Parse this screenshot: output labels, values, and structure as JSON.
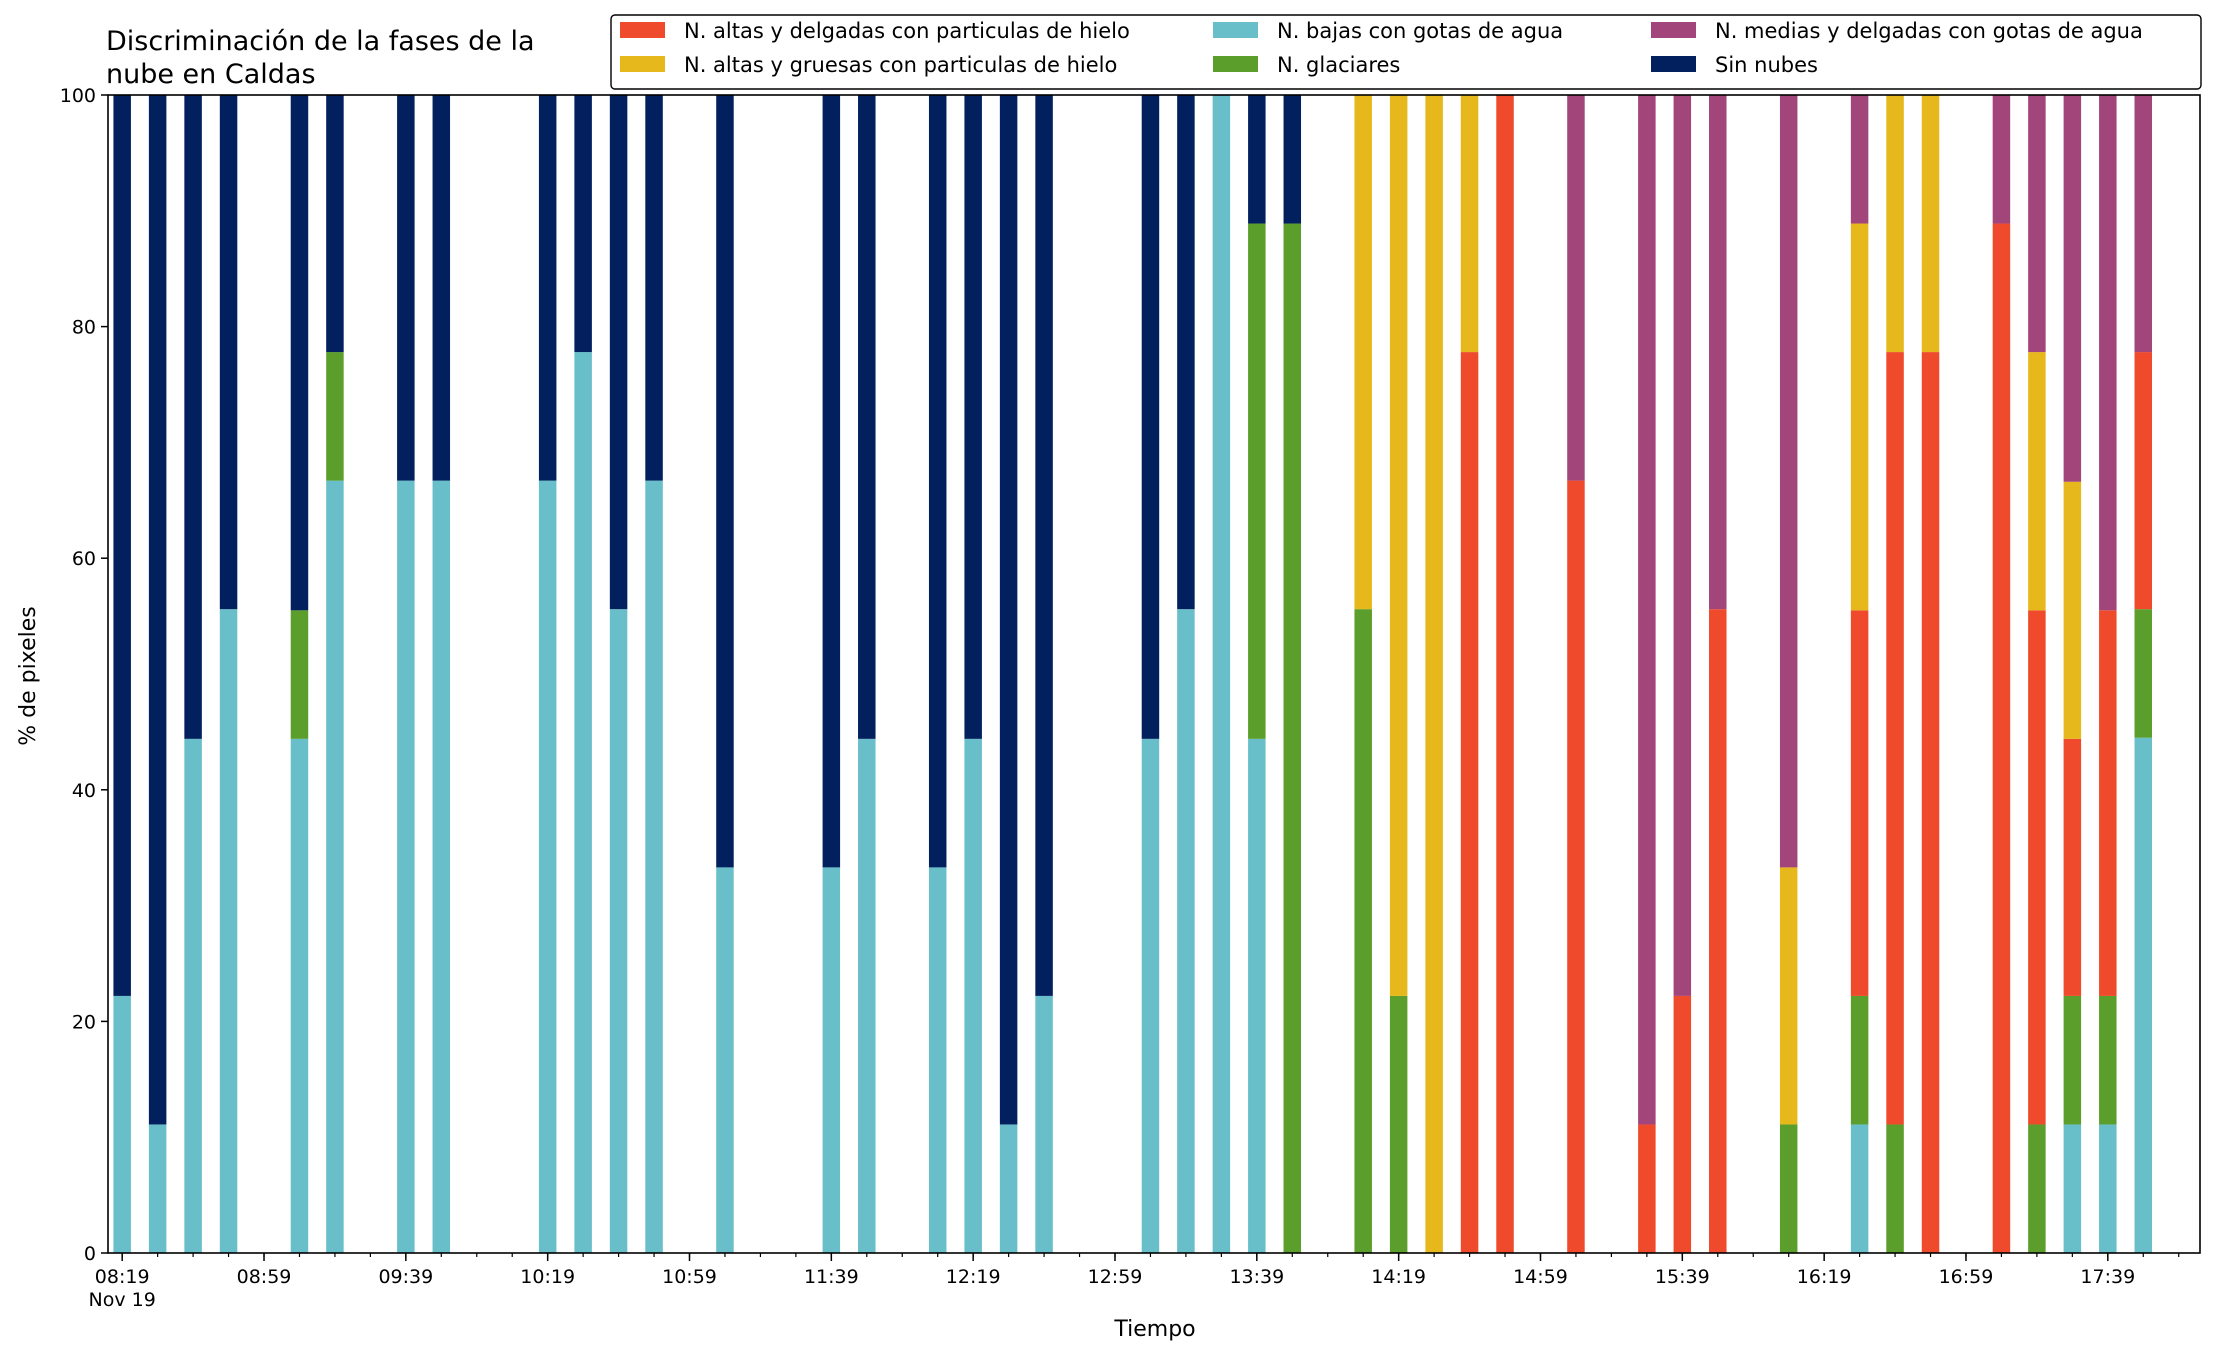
{
  "chart_data": {
    "type": "bar",
    "stacked": true,
    "title": "Discriminación de la fases de la\nnube en Caldas",
    "xlabel": "Tiempo",
    "ylabel": "% de pixeles",
    "ylim": [
      0,
      100
    ],
    "yticks": [
      0,
      20,
      40,
      60,
      80,
      100
    ],
    "x_tick_labels": [
      "08:19\nNov 19",
      "08:59",
      "09:39",
      "10:19",
      "10:59",
      "11:39",
      "12:19",
      "12:59",
      "13:39",
      "14:19",
      "14:59",
      "15:39",
      "16:19",
      "16:59",
      "17:39"
    ],
    "x_tick_times": [
      "08:19",
      "08:59",
      "09:39",
      "10:19",
      "10:59",
      "11:39",
      "12:19",
      "12:59",
      "13:39",
      "14:19",
      "14:59",
      "15:39",
      "16:19",
      "16:59",
      "17:39"
    ],
    "x_minor_step_minutes": 10,
    "x_range": [
      "08:15",
      "18:05"
    ],
    "grid": false,
    "legend_position": "top",
    "series_order": [
      "bajas",
      "glaciares",
      "altas_delgadas",
      "altas_gruesas",
      "medias",
      "sin_nubes"
    ],
    "series": [
      {
        "key": "altas_delgadas",
        "name": "N. altas y delgadas con particulas de hielo",
        "color": "#EE4A2B"
      },
      {
        "key": "altas_gruesas",
        "name": "N. altas y gruesas con particulas de hielo",
        "color": "#E6B81C"
      },
      {
        "key": "bajas",
        "name": "N. bajas con gotas de agua",
        "color": "#68BFC9"
      },
      {
        "key": "glaciares",
        "name": "N. glaciares",
        "color": "#5B9E2B"
      },
      {
        "key": "medias",
        "name": "N. medias y delgadas con gotas de agua",
        "color": "#A2457B"
      },
      {
        "key": "sin_nubes",
        "name": "Sin nubes",
        "color": "#03205E"
      }
    ],
    "bars": [
      {
        "time": "08:19",
        "bajas": 22.2,
        "sin_nubes": 77.8
      },
      {
        "time": "08:29",
        "bajas": 11.1,
        "sin_nubes": 88.9
      },
      {
        "time": "08:39",
        "bajas": 44.4,
        "sin_nubes": 55.6
      },
      {
        "time": "08:49",
        "bajas": 55.6,
        "sin_nubes": 44.4
      },
      {
        "time": "09:09",
        "bajas": 44.4,
        "glaciares": 11.1,
        "sin_nubes": 44.5
      },
      {
        "time": "09:19",
        "bajas": 66.7,
        "glaciares": 11.1,
        "sin_nubes": 22.2
      },
      {
        "time": "09:39",
        "bajas": 66.7,
        "sin_nubes": 33.3
      },
      {
        "time": "09:49",
        "bajas": 66.7,
        "sin_nubes": 33.3
      },
      {
        "time": "10:19",
        "bajas": 66.7,
        "sin_nubes": 33.3
      },
      {
        "time": "10:29",
        "bajas": 77.8,
        "sin_nubes": 22.2
      },
      {
        "time": "10:39",
        "bajas": 55.6,
        "sin_nubes": 44.4
      },
      {
        "time": "10:49",
        "bajas": 66.7,
        "sin_nubes": 33.3
      },
      {
        "time": "11:09",
        "bajas": 33.3,
        "sin_nubes": 66.7
      },
      {
        "time": "11:39",
        "bajas": 33.3,
        "sin_nubes": 66.7
      },
      {
        "time": "11:49",
        "bajas": 44.4,
        "sin_nubes": 55.6
      },
      {
        "time": "12:09",
        "bajas": 33.3,
        "sin_nubes": 66.7
      },
      {
        "time": "12:19",
        "bajas": 44.4,
        "sin_nubes": 55.6
      },
      {
        "time": "12:29",
        "bajas": 11.1,
        "sin_nubes": 88.9
      },
      {
        "time": "12:39",
        "bajas": 22.2,
        "sin_nubes": 77.8
      },
      {
        "time": "13:09",
        "bajas": 44.4,
        "sin_nubes": 55.6
      },
      {
        "time": "13:19",
        "bajas": 55.6,
        "sin_nubes": 44.4
      },
      {
        "time": "13:29",
        "bajas": 100
      },
      {
        "time": "13:39",
        "bajas": 44.4,
        "glaciares": 44.5,
        "sin_nubes": 11.1
      },
      {
        "time": "13:49",
        "glaciares": 88.9,
        "sin_nubes": 11.1
      },
      {
        "time": "14:09",
        "altas_gruesas": 44.4,
        "glaciares": 55.6
      },
      {
        "time": "14:19",
        "altas_gruesas": 77.8,
        "glaciares": 22.2
      },
      {
        "time": "14:29",
        "altas_gruesas": 100
      },
      {
        "time": "14:39",
        "altas_delgadas": 77.8,
        "altas_gruesas": 22.2
      },
      {
        "time": "14:49",
        "altas_delgadas": 100
      },
      {
        "time": "15:09",
        "altas_delgadas": 66.7,
        "medias": 33.3
      },
      {
        "time": "15:29",
        "altas_delgadas": 11.1,
        "medias": 88.9
      },
      {
        "time": "15:39",
        "altas_delgadas": 22.2,
        "medias": 77.8
      },
      {
        "time": "15:49",
        "altas_delgadas": 55.6,
        "medias": 44.4
      },
      {
        "time": "16:09",
        "glaciares": 11.1,
        "altas_gruesas": 22.2,
        "medias": 66.7
      },
      {
        "time": "16:29",
        "bajas": 11.1,
        "glaciares": 11.1,
        "altas_delgadas": 33.3,
        "altas_gruesas": 33.4,
        "medias": 11.1
      },
      {
        "time": "16:39",
        "glaciares": 11.1,
        "altas_delgadas": 66.7,
        "altas_gruesas": 22.2
      },
      {
        "time": "16:49",
        "altas_delgadas": 77.8,
        "altas_gruesas": 22.2
      },
      {
        "time": "17:09",
        "altas_delgadas": 88.9,
        "medias": 11.1
      },
      {
        "time": "17:19",
        "glaciares": 11.1,
        "altas_delgadas": 44.4,
        "altas_gruesas": 22.3,
        "medias": 22.2
      },
      {
        "time": "17:29",
        "bajas": 11.1,
        "glaciares": 11.1,
        "altas_delgadas": 22.2,
        "altas_gruesas": 22.2,
        "medias": 33.4
      },
      {
        "time": "17:39",
        "bajas": 11.1,
        "glaciares": 11.1,
        "altas_delgadas": 33.3,
        "medias": 44.5
      },
      {
        "time": "17:49",
        "bajas": 44.5,
        "glaciares": 11.1,
        "altas_delgadas": 22.2,
        "medias": 22.2
      }
    ]
  }
}
